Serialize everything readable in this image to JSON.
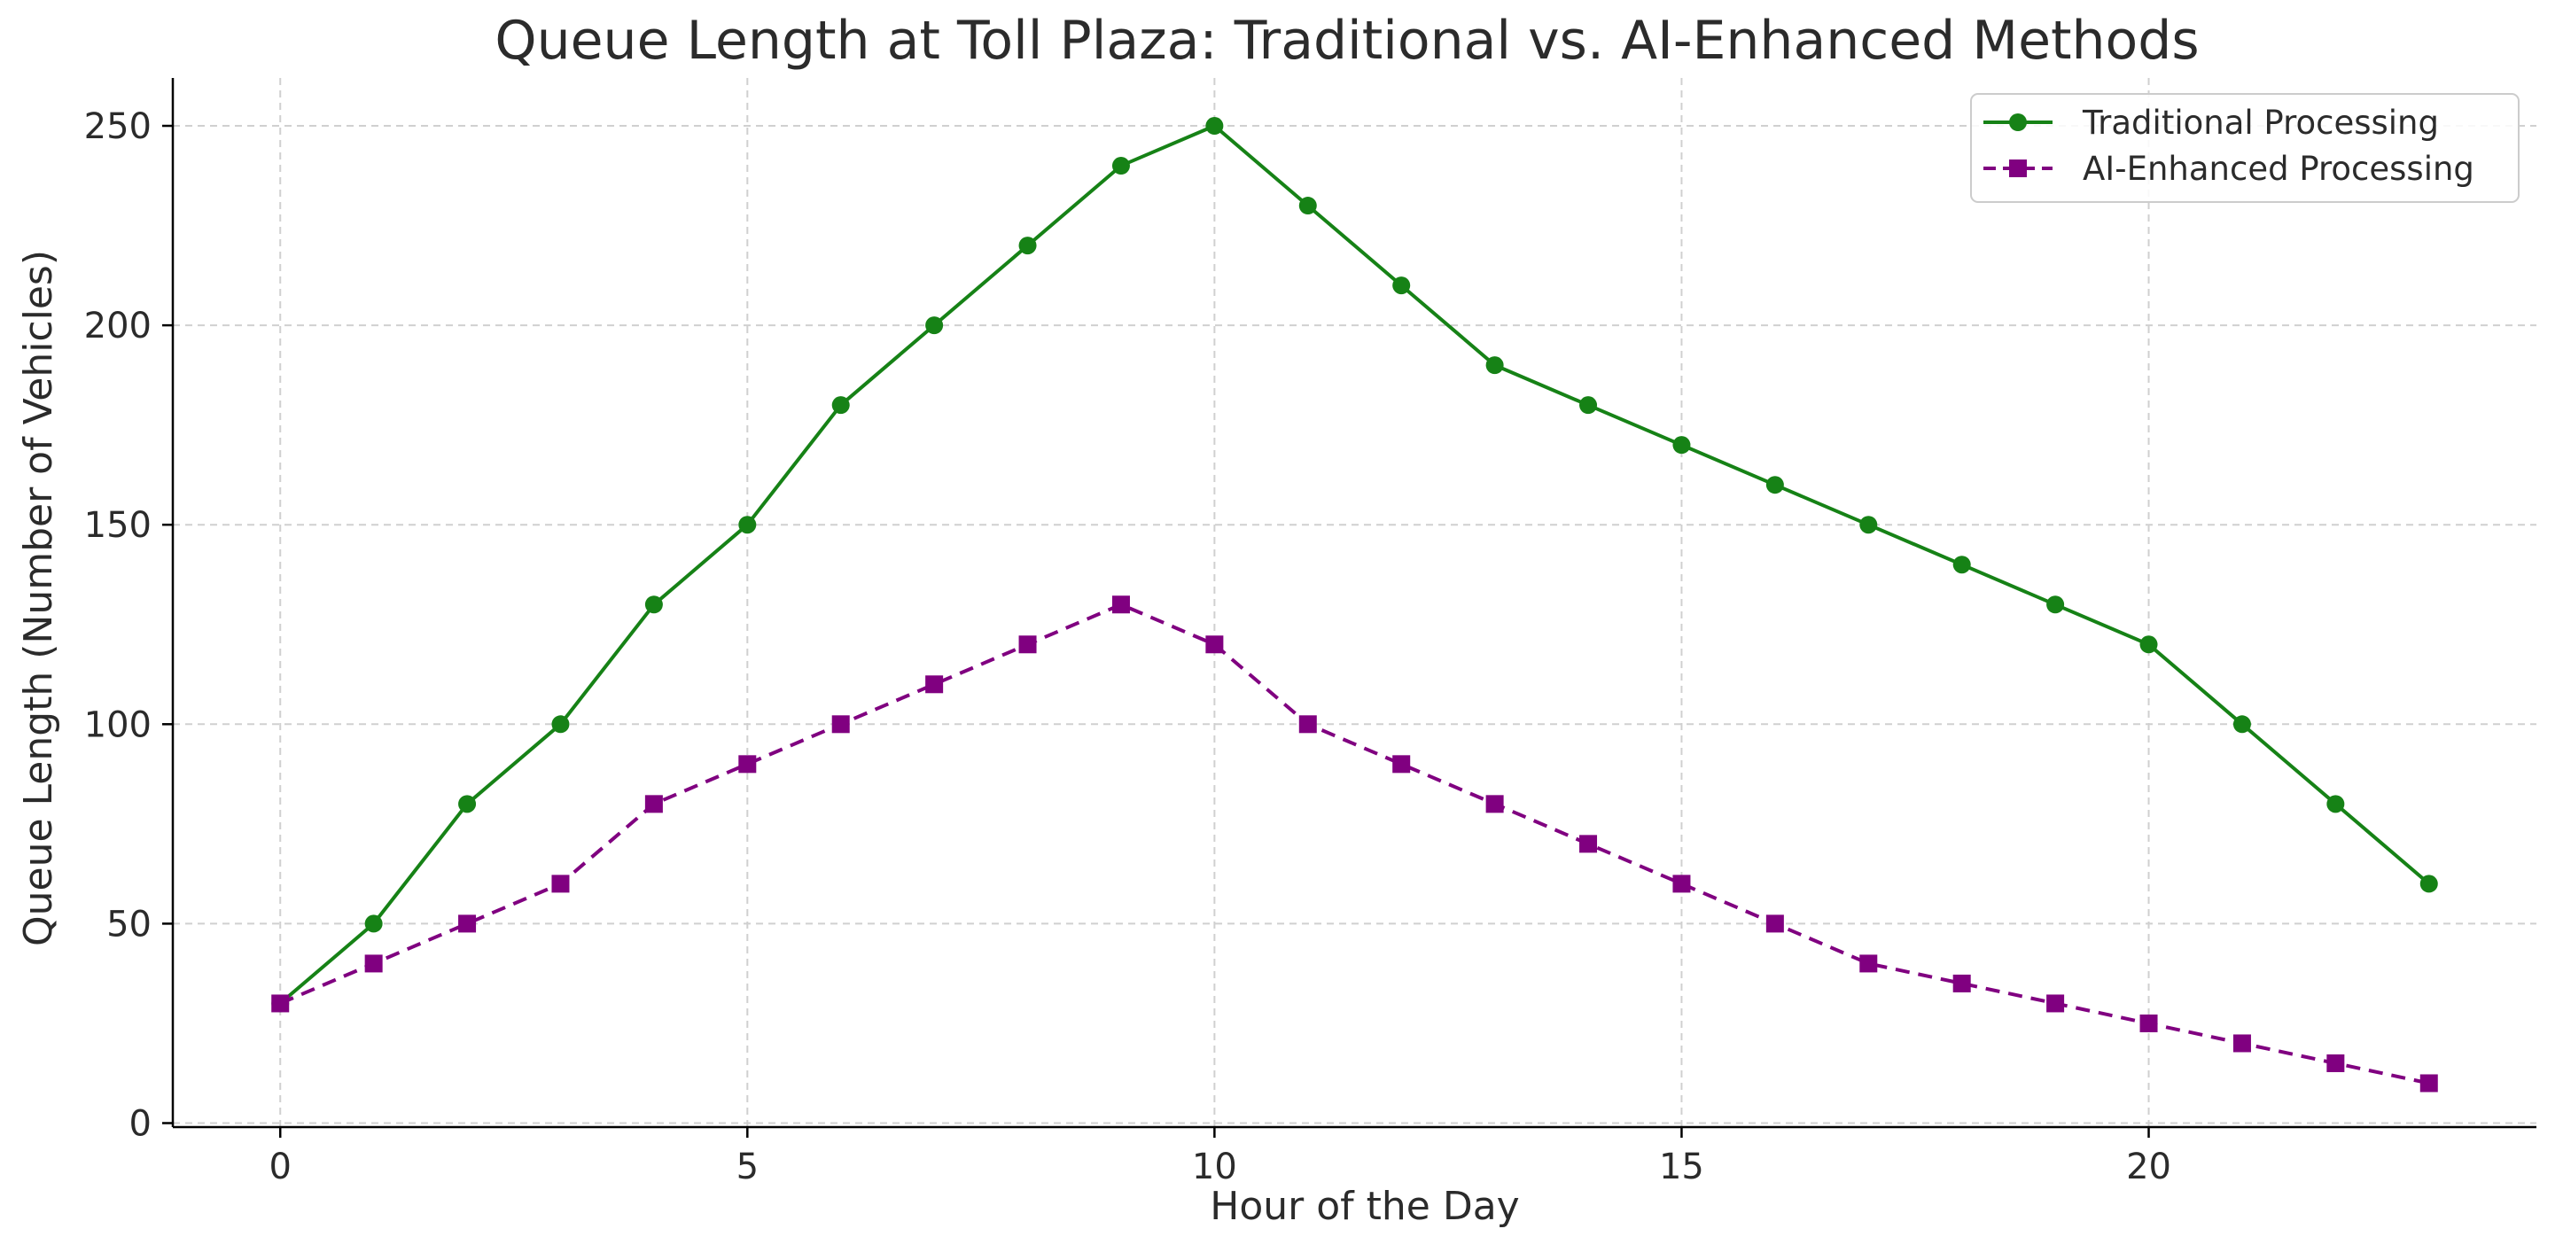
{
  "chart_data": {
    "type": "line",
    "title": "Queue Length at Toll Plaza: Traditional vs. AI-Enhanced Methods",
    "xlabel": "Hour of the Day",
    "ylabel": "Queue Length (Number of Vehicles)",
    "xlim": [
      -1.15,
      24.15
    ],
    "ylim": [
      -1,
      262
    ],
    "xticks": [
      0,
      5,
      10,
      15,
      20
    ],
    "yticks": [
      0,
      50,
      100,
      150,
      200,
      250
    ],
    "grid": true,
    "legend_position": "top-right",
    "x": [
      0,
      1,
      2,
      3,
      4,
      5,
      6,
      7,
      8,
      9,
      10,
      11,
      12,
      13,
      14,
      15,
      16,
      17,
      18,
      19,
      20,
      21,
      22,
      23
    ],
    "series": [
      {
        "name": "Traditional Processing",
        "color": "#168216",
        "line_style": "solid",
        "marker": "circle",
        "values": [
          30,
          50,
          80,
          100,
          130,
          150,
          180,
          200,
          220,
          240,
          250,
          230,
          210,
          190,
          180,
          170,
          160,
          150,
          140,
          130,
          120,
          100,
          80,
          60
        ]
      },
      {
        "name": "AI-Enhanced Processing",
        "color": "#800080",
        "line_style": "dashed",
        "marker": "square",
        "values": [
          30,
          40,
          50,
          60,
          80,
          90,
          100,
          110,
          120,
          130,
          120,
          100,
          90,
          80,
          70,
          60,
          50,
          40,
          35,
          30,
          25,
          20,
          15,
          10
        ]
      }
    ]
  }
}
